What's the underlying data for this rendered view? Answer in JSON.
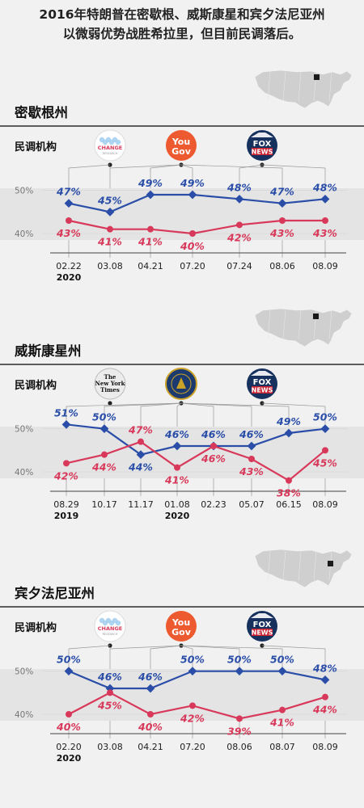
{
  "headline": {
    "line1": "2016年特朗普在密歇根、威斯康星和宾夕法尼亚州",
    "line2": "以微弱优势战胜希拉里，但目前民调落后。"
  },
  "agency_label": "民调机构",
  "logos": {
    "change_research": "CHANGE",
    "change_research_sub": "RESEARCH",
    "yougov_line1": "You",
    "yougov_line2": "Gov",
    "fox_line1": "FOX",
    "fox_line2": "NEWS",
    "nyt_line1": "The",
    "nyt_line2": "New York",
    "nyt_line3": "Times"
  },
  "colors": {
    "trump": "#d8395a",
    "biden": "#2a4ea8",
    "band": "#e4e4e4",
    "background": "#f1f1f1"
  },
  "chart_data": [
    {
      "type": "line",
      "title": "密歇根州",
      "yticks": [
        "50%",
        "40%"
      ],
      "ylim": [
        37,
        52
      ],
      "x": [
        "02.22",
        "03.08",
        "04.21",
        "07.20",
        "07.24",
        "08.06",
        "08.09"
      ],
      "year_labels": [
        {
          "index": 0,
          "label": "2020"
        }
      ],
      "agencies": [
        "change",
        "yougov",
        "fox"
      ],
      "pollsters": [
        "change",
        "yougov",
        "yougov",
        "yougov",
        "fox",
        "yougov",
        "fox"
      ],
      "series": [
        {
          "values": [
            47,
            45,
            49,
            49,
            48,
            47,
            48
          ],
          "labels": [
            "47%",
            "45%",
            "49%",
            "49%",
            "48%",
            "47%",
            "48%"
          ],
          "color": "#2a4ea8"
        },
        {
          "values": [
            43,
            41,
            41,
            40,
            42,
            43,
            43
          ],
          "labels": [
            "43%",
            "41%",
            "41%",
            "40%",
            "42%",
            "43%",
            "43%"
          ],
          "color": "#d8395a"
        }
      ]
    },
    {
      "type": "line",
      "title": "威斯康星州",
      "yticks": [
        "50%",
        "40%"
      ],
      "ylim": [
        37,
        52
      ],
      "x": [
        "08.29",
        "10.17",
        "11.17",
        "01.08",
        "02.23",
        "05.07",
        "06.15",
        "08.09"
      ],
      "year_labels": [
        {
          "index": 0,
          "label": "2019"
        },
        {
          "index": 3,
          "label": "2020"
        }
      ],
      "agencies": [
        "nyt",
        "marquette",
        "fox"
      ],
      "pollsters": [
        "marquette",
        "marquette",
        "marquette",
        "marquette",
        "marquette",
        "marquette",
        "marquette",
        "fox"
      ],
      "series": [
        {
          "values": [
            51,
            50,
            44,
            46,
            46,
            46,
            49,
            50
          ],
          "labels": [
            "51%",
            "50%",
            "44%",
            "46%",
            "46%",
            "46%",
            "49%",
            "50%"
          ],
          "color": "#2a4ea8"
        },
        {
          "values": [
            42,
            44,
            47,
            41,
            46,
            43,
            38,
            45
          ],
          "labels": [
            "42%",
            "44%",
            "47%",
            "41%",
            "46%",
            "43%",
            "38%",
            "45%"
          ],
          "color": "#d8395a"
        }
      ]
    },
    {
      "type": "line",
      "title": "宾夕法尼亚州",
      "yticks": [
        "50%",
        "40%"
      ],
      "ylim": [
        37,
        52
      ],
      "x": [
        "02.20",
        "03.08",
        "04.21",
        "07.20",
        "08.06",
        "08.07",
        "08.09"
      ],
      "year_labels": [
        {
          "index": 0,
          "label": "2020"
        }
      ],
      "agencies": [
        "change",
        "yougov",
        "fox"
      ],
      "pollsters": [
        "change",
        "yougov",
        "yougov",
        "yougov",
        "yougov",
        "yougov",
        "fox"
      ],
      "series": [
        {
          "values": [
            50,
            46,
            46,
            50,
            50,
            50,
            48
          ],
          "labels": [
            "50%",
            "46%",
            "46%",
            "50%",
            "50%",
            "50%",
            "48%"
          ],
          "color": "#2a4ea8"
        },
        {
          "values": [
            40,
            45,
            40,
            42,
            39,
            41,
            44
          ],
          "labels": [
            "40%",
            "45%",
            "40%",
            "42%",
            "39%",
            "41%",
            "44%"
          ],
          "color": "#d8395a"
        }
      ]
    }
  ]
}
